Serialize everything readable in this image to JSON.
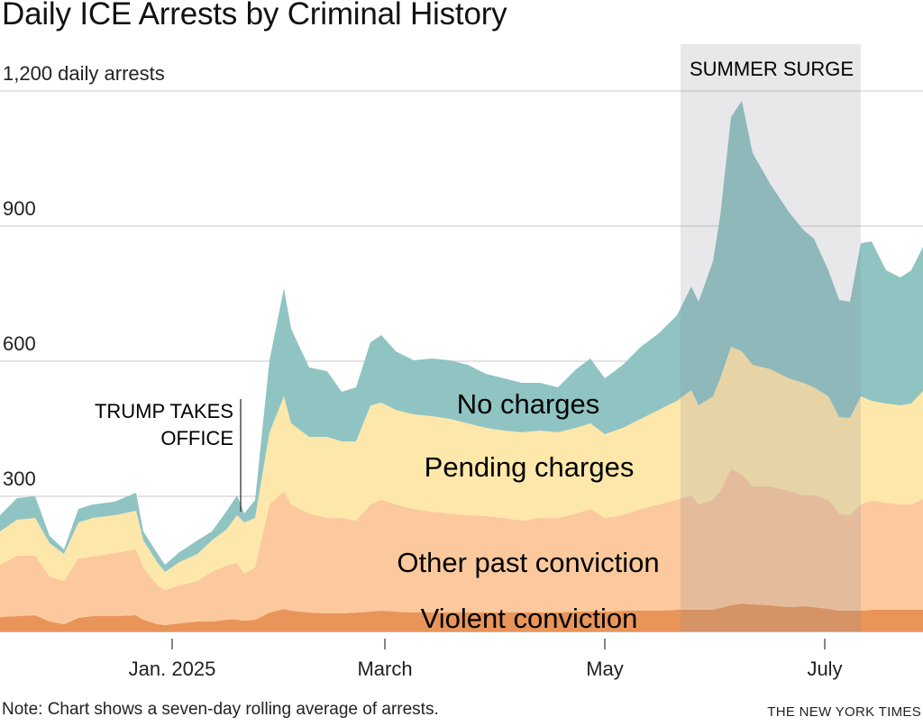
{
  "chart_data": {
    "type": "area",
    "stacked": true,
    "title": "Daily ICE Arrests by Criminal History",
    "ylabel": "",
    "ylim": [
      0,
      1200
    ],
    "yticks": [
      300,
      600,
      900,
      1200
    ],
    "ytick_labels": [
      "300",
      "600",
      "900",
      "1,200 daily arrests"
    ],
    "xticks": [
      {
        "date": "2025-01-01",
        "label": "Jan. 2025"
      },
      {
        "date": "2025-03-01",
        "label": "March"
      },
      {
        "date": "2025-05-01",
        "label": "May"
      },
      {
        "date": "2025-07-01",
        "label": "July"
      }
    ],
    "grid": true,
    "dates": [
      "2024-11-14",
      "2024-11-19",
      "2024-11-24",
      "2024-11-28",
      "2024-12-02",
      "2024-12-06",
      "2024-12-10",
      "2024-12-16",
      "2024-12-22",
      "2024-12-24",
      "2024-12-28",
      "2024-12-30",
      "2025-01-03",
      "2025-01-08",
      "2025-01-12",
      "2025-01-16",
      "2025-01-19",
      "2025-01-21",
      "2025-01-24",
      "2025-01-28",
      "2025-02-01",
      "2025-02-03",
      "2025-02-08",
      "2025-02-13",
      "2025-02-17",
      "2025-02-21",
      "2025-02-25",
      "2025-02-28",
      "2025-03-04",
      "2025-03-09",
      "2025-03-14",
      "2025-03-19",
      "2025-03-24",
      "2025-03-29",
      "2025-04-03",
      "2025-04-08",
      "2025-04-13",
      "2025-04-18",
      "2025-04-23",
      "2025-04-27",
      "2025-05-01",
      "2025-05-06",
      "2025-05-11",
      "2025-05-16",
      "2025-05-21",
      "2025-05-25",
      "2025-05-27",
      "2025-05-31",
      "2025-06-02",
      "2025-06-05",
      "2025-06-08",
      "2025-06-11",
      "2025-06-16",
      "2025-06-21",
      "2025-06-25",
      "2025-06-28",
      "2025-07-02",
      "2025-07-05",
      "2025-07-08",
      "2025-07-11",
      "2025-07-14",
      "2025-07-18",
      "2025-07-22",
      "2025-07-25",
      "2025-07-28"
    ],
    "series": [
      {
        "name": "Violent conviction",
        "color": "#e9955a",
        "values": [
          32,
          34,
          36,
          22,
          16,
          30,
          34,
          34,
          36,
          26,
          16,
          14,
          18,
          22,
          22,
          26,
          26,
          24,
          26,
          42,
          50,
          46,
          42,
          40,
          40,
          42,
          44,
          46,
          44,
          42,
          42,
          42,
          42,
          42,
          42,
          42,
          42,
          42,
          44,
          44,
          44,
          46,
          46,
          46,
          48,
          48,
          48,
          48,
          52,
          58,
          62,
          60,
          58,
          54,
          56,
          54,
          50,
          46,
          46,
          46,
          48,
          48,
          48,
          48,
          48
        ]
      },
      {
        "name": "Other past conviction",
        "color": "#fbc99d",
        "values": [
          116,
          134,
          132,
          100,
          96,
          132,
          132,
          140,
          146,
          116,
          86,
          78,
          84,
          90,
          110,
          120,
          126,
          104,
          116,
          240,
          262,
          236,
          220,
          212,
          212,
          204,
          238,
          246,
          238,
          230,
          224,
          220,
          216,
          214,
          210,
          204,
          210,
          210,
          218,
          228,
          208,
          212,
          226,
          236,
          244,
          254,
          234,
          244,
          260,
          304,
          286,
          262,
          264,
          258,
          246,
          248,
          242,
          216,
          212,
          236,
          242,
          238,
          234,
          234,
          246
        ]
      },
      {
        "name": "Pending charges",
        "color": "#fde7aa",
        "values": [
          74,
          80,
          84,
          74,
          60,
          80,
          86,
          84,
          86,
          60,
          50,
          40,
          52,
          60,
          70,
          80,
          106,
          114,
          110,
          160,
          210,
          180,
          170,
          180,
          170,
          176,
          220,
          216,
          210,
          210,
          212,
          210,
          204,
          196,
          194,
          196,
          194,
          190,
          190,
          190,
          186,
          194,
          200,
          210,
          220,
          234,
          220,
          230,
          250,
          270,
          274,
          270,
          260,
          250,
          250,
          240,
          230,
          214,
          216,
          240,
          222,
          220,
          220,
          224,
          240
        ]
      },
      {
        "name": "No charges",
        "color": "#8fc4c3",
        "values": [
          36,
          48,
          48,
          16,
          10,
          30,
          30,
          30,
          40,
          20,
          20,
          16,
          22,
          30,
          20,
          40,
          44,
          20,
          40,
          160,
          240,
          210,
          154,
          146,
          110,
          120,
          140,
          150,
          130,
          120,
          128,
          130,
          130,
          120,
          116,
          110,
          106,
          100,
          130,
          144,
          124,
          140,
          160,
          170,
          190,
          230,
          230,
          300,
          360,
          510,
          556,
          470,
          410,
          370,
          340,
          330,
          280,
          260,
          258,
          340,
          354,
          296,
          284,
          296,
          320
        ]
      }
    ],
    "annotations": [
      {
        "type": "vline",
        "date": "2025-01-20",
        "text": [
          "TRUMP TAKES",
          "OFFICE"
        ]
      },
      {
        "type": "band",
        "start": "2025-05-22",
        "end": "2025-07-11",
        "text": "SUMMER SURGE",
        "color": "#d8d8dc"
      }
    ],
    "note": "Note: Chart shows a seven-day rolling average of arrests.",
    "source": "THE NEW YORK TIMES"
  }
}
